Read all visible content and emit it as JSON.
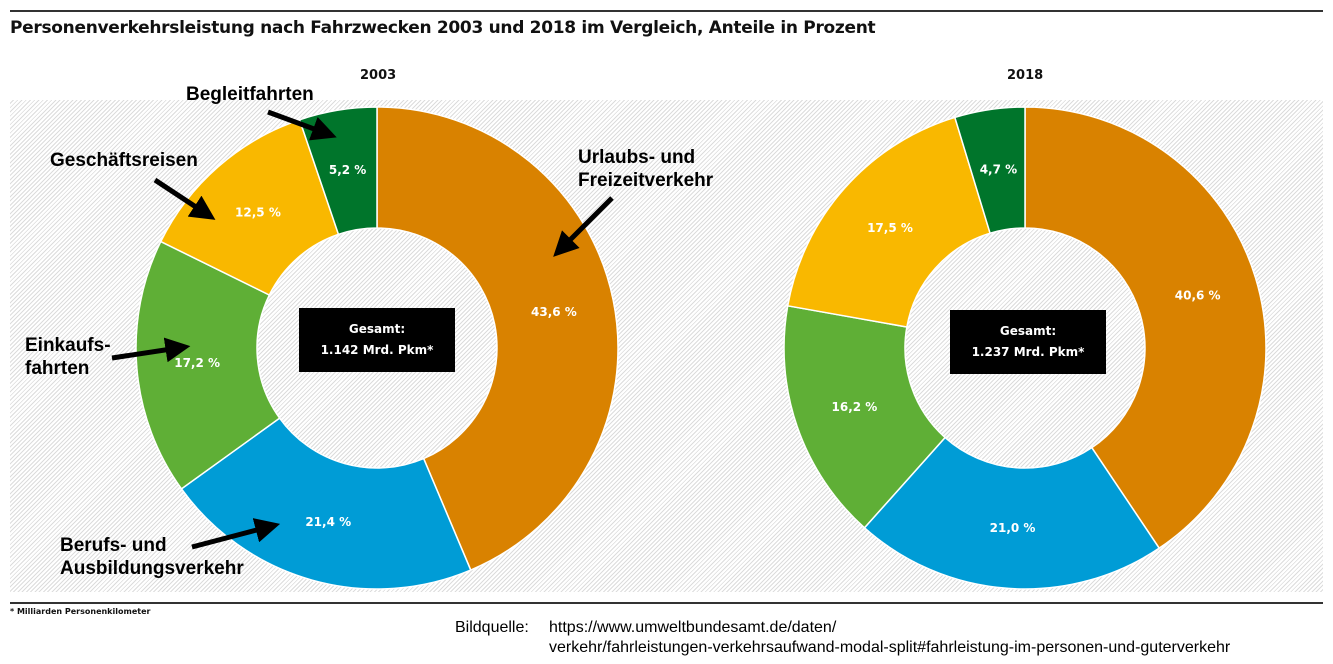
{
  "chart_data": [
    {
      "type": "pie",
      "title": "2003",
      "total_label": "Gesamt:",
      "total_value": "1.142 Mrd. Pkm*",
      "categories": [
        "Urlaubs- und Freizeitverkehr",
        "Berufs- und Ausbildungsverkehr",
        "Einkaufsfahrten",
        "Geschäftsreisen",
        "Begleitfahrten"
      ],
      "values": [
        43.6,
        21.4,
        17.2,
        12.5,
        5.2
      ],
      "labels": [
        "43,6 %",
        "21,4 %",
        "17,2 %",
        "12,5 %",
        "5,2 %"
      ]
    },
    {
      "type": "pie",
      "title": "2018",
      "total_label": "Gesamt:",
      "total_value": "1.237 Mrd. Pkm*",
      "categories": [
        "Urlaubs- und Freizeitverkehr",
        "Berufs- und Ausbildungsverkehr",
        "Einkaufsfahrten",
        "Geschäftsreisen",
        "Begleitfahrten"
      ],
      "values": [
        40.6,
        21.0,
        16.2,
        17.5,
        4.7
      ],
      "labels": [
        "40,6 %",
        "21,0 %",
        "16,2 %",
        "17,5 %",
        "4,7 %"
      ]
    }
  ],
  "title": "Personenverkehrsleistung nach Fahrzwecken 2003 und 2018 im Vergleich, Anteile in Prozent",
  "colors": [
    "#D98200",
    "#009CD6",
    "#5FAF36",
    "#F9B800",
    "#00752B"
  ],
  "annotations": {
    "urlaub": "Urlaubs- und",
    "urlaub2": "Freizeitverkehr",
    "beruf": "Berufs- und",
    "beruf2": "Ausbildungsverkehr",
    "einkauf": "Einkaufs-",
    "einkauf2": "fahrten",
    "geschaeft": "Geschäftsreisen",
    "begleit": "Begleitfahrten"
  },
  "footnote": "* Milliarden Personenkilometer",
  "source": {
    "label": "Bildquelle:",
    "line1": "https://www.umweltbundesamt.de/daten/",
    "line2": "verkehr/fahrleistungen-verkehrsaufwand-modal-split#fahrleistung-im-personen-und-guterverkehr"
  }
}
